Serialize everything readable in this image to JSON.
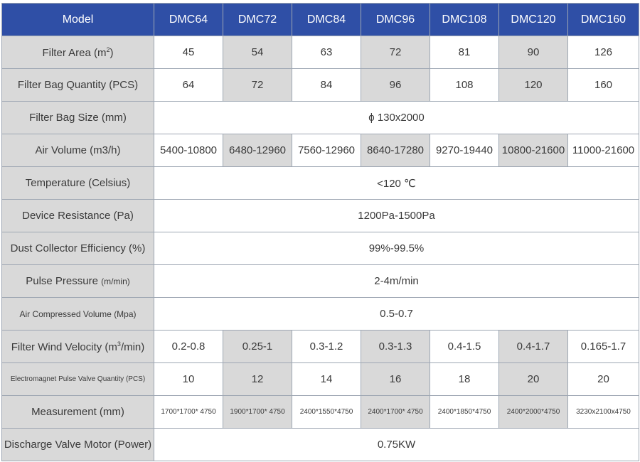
{
  "table": {
    "header": [
      "Model",
      "DMC64",
      "DMC72",
      "DMC84",
      "DMC96",
      "DMC108",
      "DMC120",
      "DMC160"
    ],
    "rows": [
      {
        "label": "Filter Area (m²)",
        "cells": [
          "45",
          "54",
          "63",
          "72",
          "81",
          "90",
          "126"
        ]
      },
      {
        "label": "Filter Bag Quantity (PCS)",
        "cells": [
          "64",
          "72",
          "84",
          "96",
          "108",
          "120",
          "160"
        ]
      },
      {
        "label": "Filter Bag Size  (mm)",
        "merged": "ϕ 130x2000"
      },
      {
        "label": "Air Volume (m3/h)",
        "cells": [
          "5400-10800",
          "6480-12960",
          "7560-12960",
          "8640-17280",
          "9270-19440",
          "10800-21600",
          "11000-21600"
        ]
      },
      {
        "label": "Temperature (Celsius)",
        "merged": "<120 ℃"
      },
      {
        "label": "Device Resistance (Pa)",
        "merged": "1200Pa-1500Pa"
      },
      {
        "label": "Dust Collector Efficiency (%)",
        "merged": "99%-99.5%"
      },
      {
        "label": "Pulse Pressure (m/min)",
        "merged": "2-4m/min"
      },
      {
        "label": "Air Compressed Volume (Mpa)",
        "merged": "0.5-0.7"
      },
      {
        "label": "Filter Wind Velocity (m³/min)",
        "cells": [
          "0.2-0.8",
          "0.25-1",
          "0.3-1.2",
          "0.3-1.3",
          "0.4-1.5",
          "0.4-1.7",
          "0.165-1.7"
        ]
      },
      {
        "label": "Electromagnet Pulse Valve Quantity (PCS)",
        "cells": [
          "10",
          "12",
          "14",
          "16",
          "18",
          "20",
          "20"
        ]
      },
      {
        "label": "Measurement (mm)",
        "cells": [
          "1700*1700* 4750",
          "1900*1700* 4750",
          "2400*1550*4750",
          "2400*1700* 4750",
          "2400*1850*4750",
          "2400*2000*4750",
          "3230x2100x4750"
        ]
      },
      {
        "label": "Discharge Valve Motor (Power)",
        "merged": "0.75KW"
      }
    ]
  },
  "colors": {
    "header_bg": "#2f4fa6",
    "label_bg": "#d9d9d9",
    "border": "#9ea7b3"
  }
}
